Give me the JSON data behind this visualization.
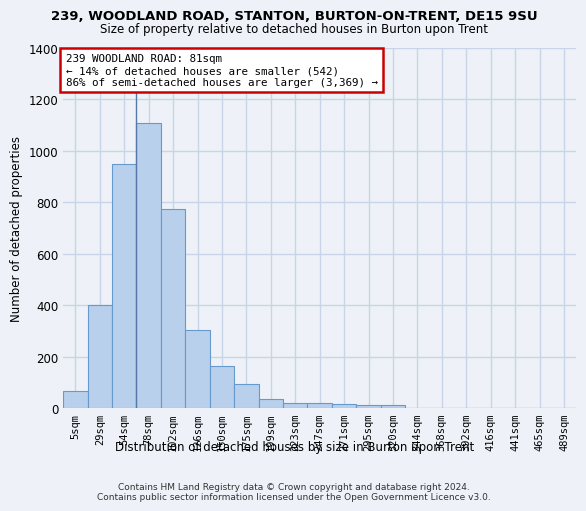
{
  "title1": "239, WOODLAND ROAD, STANTON, BURTON-ON-TRENT, DE15 9SU",
  "title2": "Size of property relative to detached houses in Burton upon Trent",
  "xlabel": "Distribution of detached houses by size in Burton upon Trent",
  "ylabel": "Number of detached properties",
  "categories": [
    "5sqm",
    "29sqm",
    "54sqm",
    "78sqm",
    "102sqm",
    "126sqm",
    "150sqm",
    "175sqm",
    "199sqm",
    "223sqm",
    "247sqm",
    "271sqm",
    "295sqm",
    "320sqm",
    "344sqm",
    "368sqm",
    "392sqm",
    "416sqm",
    "441sqm",
    "465sqm",
    "489sqm"
  ],
  "values": [
    65,
    400,
    950,
    1110,
    775,
    305,
    165,
    95,
    35,
    20,
    18,
    15,
    12,
    12,
    0,
    0,
    0,
    0,
    0,
    0,
    0
  ],
  "bar_color": "#b8d0eb",
  "bar_edge_color": "#6699cc",
  "annotation_text": "239 WOODLAND ROAD: 81sqm\n← 14% of detached houses are smaller (542)\n86% of semi-detached houses are larger (3,369) →",
  "annotation_box_color": "white",
  "annotation_box_edge_color": "#cc0000",
  "property_line_x": 2.5,
  "ylim": [
    0,
    1400
  ],
  "yticks": [
    0,
    200,
    400,
    600,
    800,
    1000,
    1200,
    1400
  ],
  "bg_color": "#eef2f8",
  "grid_color": "#c8d4e8",
  "footer1": "Contains HM Land Registry data © Crown copyright and database right 2024.",
  "footer2": "Contains public sector information licensed under the Open Government Licence v3.0."
}
